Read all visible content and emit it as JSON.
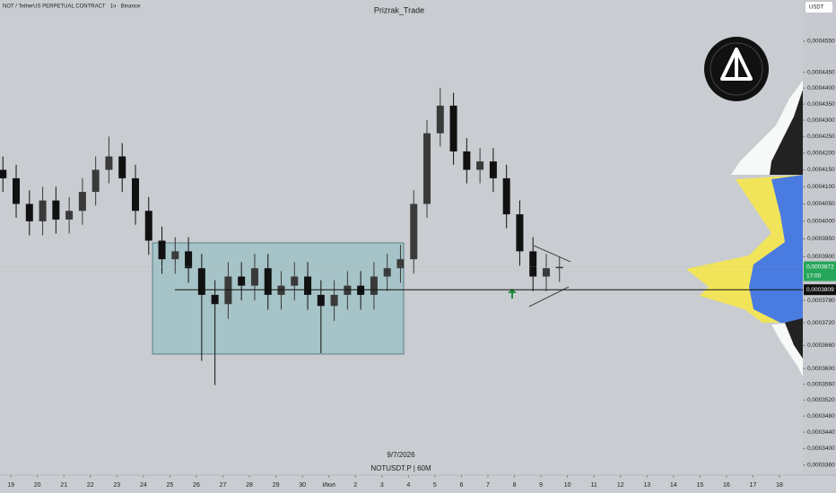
{
  "header": {
    "symbol_title": "NOT / TetherUS PERPETUAL CONTRACT · 1ч · Binance",
    "author": "Prizrak_Trade",
    "currency": "USDT",
    "date": "9/7/2026",
    "ticker": "NOTUSDT.P | 60M"
  },
  "chart_data": {
    "type": "candlestick",
    "log_scale": true,
    "up_color": "#3a3a3a",
    "down_color": "#111111",
    "x": [
      -0.3,
      0.2,
      0.7,
      1.2,
      1.7,
      2.2,
      2.7,
      3.2,
      3.7,
      4.2,
      4.7,
      5.2,
      5.7,
      6.2,
      6.7,
      7.2,
      7.7,
      8.2,
      8.7,
      9.2,
      9.7,
      10.2,
      10.7,
      11.2,
      11.7,
      12.2,
      12.7,
      13.2,
      13.7,
      14.2,
      14.7,
      15.2,
      15.7,
      16.2,
      16.7,
      17.2,
      17.7,
      18.2,
      18.7,
      19.2,
      19.7,
      20.2,
      20.7
    ],
    "open": [
      0.000415,
      0.0004125,
      0.000405,
      0.0004,
      0.000406,
      0.0004005,
      0.000403,
      0.0004085,
      0.000415,
      0.000419,
      0.0004125,
      0.000403,
      0.0003945,
      0.0003893,
      0.0003915,
      0.0003868,
      0.0003795,
      0.000377,
      0.0003845,
      0.000382,
      0.0003868,
      0.0003795,
      0.000382,
      0.0003845,
      0.0003795,
      0.0003765,
      0.0003795,
      0.000382,
      0.0003795,
      0.0003845,
      0.0003868,
      0.0003893,
      0.000405,
      0.000426,
      0.0004345,
      0.0004205,
      0.000415,
      0.0004175,
      0.0004125,
      0.000402,
      0.0003915,
      0.0003845,
      0.0003868
    ],
    "high": [
      0.000419,
      0.0004165,
      0.000409,
      0.00041,
      0.00041,
      0.000407,
      0.0004125,
      0.000419,
      0.000425,
      0.000423,
      0.0004165,
      0.000407,
      0.0003985,
      0.0003955,
      0.0003955,
      0.0003908,
      0.0003835,
      0.0003885,
      0.0003885,
      0.0003908,
      0.0003908,
      0.000386,
      0.0003885,
      0.0003885,
      0.0003835,
      0.0003835,
      0.000386,
      0.000386,
      0.0003885,
      0.0003908,
      0.0003933,
      0.000409,
      0.00043,
      0.00044,
      0.0004385,
      0.0004245,
      0.0004215,
      0.0004215,
      0.0004165,
      0.000406,
      0.0003955,
      0.0003908,
      0.00039
    ],
    "low": [
      0.0004085,
      0.000401,
      0.000396,
      0.000396,
      0.0003965,
      0.0003965,
      0.000399,
      0.0004045,
      0.000411,
      0.0004085,
      0.000399,
      0.0003905,
      0.0003853,
      0.0003853,
      0.0003828,
      0.000362,
      0.0003558,
      0.000373,
      0.000378,
      0.000378,
      0.0003755,
      0.0003755,
      0.000378,
      0.0003755,
      0.000364,
      0.0003725,
      0.0003755,
      0.0003755,
      0.0003755,
      0.0003805,
      0.0003828,
      0.0003853,
      0.000401,
      0.000422,
      0.0004165,
      0.000411,
      0.000411,
      0.0004085,
      0.000398,
      0.0003875,
      0.0003805,
      0.0003805,
      0.000383
    ],
    "close": [
      0.0004125,
      0.000405,
      0.0004,
      0.000406,
      0.0004005,
      0.000403,
      0.0004085,
      0.000415,
      0.000419,
      0.0004125,
      0.000403,
      0.0003945,
      0.0003893,
      0.0003915,
      0.0003868,
      0.0003795,
      0.000377,
      0.0003845,
      0.000382,
      0.0003868,
      0.0003795,
      0.000382,
      0.0003845,
      0.0003795,
      0.0003765,
      0.0003795,
      0.000382,
      0.0003795,
      0.0003845,
      0.0003868,
      0.0003893,
      0.000405,
      0.000426,
      0.0004345,
      0.0004205,
      0.000415,
      0.0004175,
      0.0004125,
      0.000402,
      0.0003915,
      0.0003845,
      0.0003868,
      0.0003872
    ],
    "xlim": [
      -0.41,
      29.88
    ],
    "xticks": [
      {
        "value": 0,
        "label": "19"
      },
      {
        "value": 1,
        "label": "20"
      },
      {
        "value": 2,
        "label": "21"
      },
      {
        "value": 3,
        "label": "22"
      },
      {
        "value": 4,
        "label": "23"
      },
      {
        "value": 5,
        "label": "24"
      },
      {
        "value": 6,
        "label": "25"
      },
      {
        "value": 7,
        "label": "26"
      },
      {
        "value": 8,
        "label": "27"
      },
      {
        "value": 9,
        "label": "28"
      },
      {
        "value": 10,
        "label": "29"
      },
      {
        "value": 11,
        "label": "30"
      },
      {
        "value": 12,
        "label": "Июл"
      },
      {
        "value": 13,
        "label": "2"
      },
      {
        "value": 14,
        "label": "3"
      },
      {
        "value": 15,
        "label": "4"
      },
      {
        "value": 16,
        "label": "5"
      },
      {
        "value": 17,
        "label": "6"
      },
      {
        "value": 18,
        "label": "7"
      },
      {
        "value": 19,
        "label": "8"
      },
      {
        "value": 20,
        "label": "9"
      },
      {
        "value": 21,
        "label": "10"
      },
      {
        "value": 22,
        "label": "11"
      },
      {
        "value": 23,
        "label": "12"
      },
      {
        "value": 24,
        "label": "13"
      },
      {
        "value": 25,
        "label": "14"
      },
      {
        "value": 26,
        "label": "15"
      },
      {
        "value": 27,
        "label": "16"
      },
      {
        "value": 28,
        "label": "17"
      },
      {
        "value": 29,
        "label": "18"
      }
    ],
    "ylim": [
      0.0003336,
      0.0004686
    ],
    "yticks": [
      {
        "value": 0.000455,
        "label": "0,0004550"
      },
      {
        "value": 0.000445,
        "label": "0,0004450"
      },
      {
        "value": 0.00044,
        "label": "0,0004400"
      },
      {
        "value": 0.000435,
        "label": "0,0004350"
      },
      {
        "value": 0.00043,
        "label": "0,0004300"
      },
      {
        "value": 0.000425,
        "label": "0,0004250"
      },
      {
        "value": 0.00042,
        "label": "0,0004200"
      },
      {
        "value": 0.000415,
        "label": "0,0004150"
      },
      {
        "value": 0.00041,
        "label": "0,0004100"
      },
      {
        "value": 0.000405,
        "label": "0,0004050"
      },
      {
        "value": 0.0004,
        "label": "0,0004000"
      },
      {
        "value": 0.000395,
        "label": "0,0003950"
      },
      {
        "value": 0.00039,
        "label": "0,0003900"
      },
      {
        "value": 0.000378,
        "label": "0,0003780"
      },
      {
        "value": 0.000372,
        "label": "0,0003720"
      },
      {
        "value": 0.000366,
        "label": "0,0003660"
      },
      {
        "value": 0.00036,
        "label": "0,0003600"
      },
      {
        "value": 0.000356,
        "label": "0,0003560"
      },
      {
        "value": 0.000352,
        "label": "0,0003520"
      },
      {
        "value": 0.000348,
        "label": "0,0003480"
      },
      {
        "value": 0.000344,
        "label": "0,0003440"
      },
      {
        "value": 0.00034,
        "label": "0,0003400"
      },
      {
        "value": 0.000336,
        "label": "0,0003360"
      }
    ],
    "current_price": {
      "value": 0.0003872,
      "label": "0,0003872",
      "time": "17:00",
      "color": "#26a65b"
    },
    "level": {
      "value": 0.0003809,
      "label": "0,0003809"
    }
  }
}
